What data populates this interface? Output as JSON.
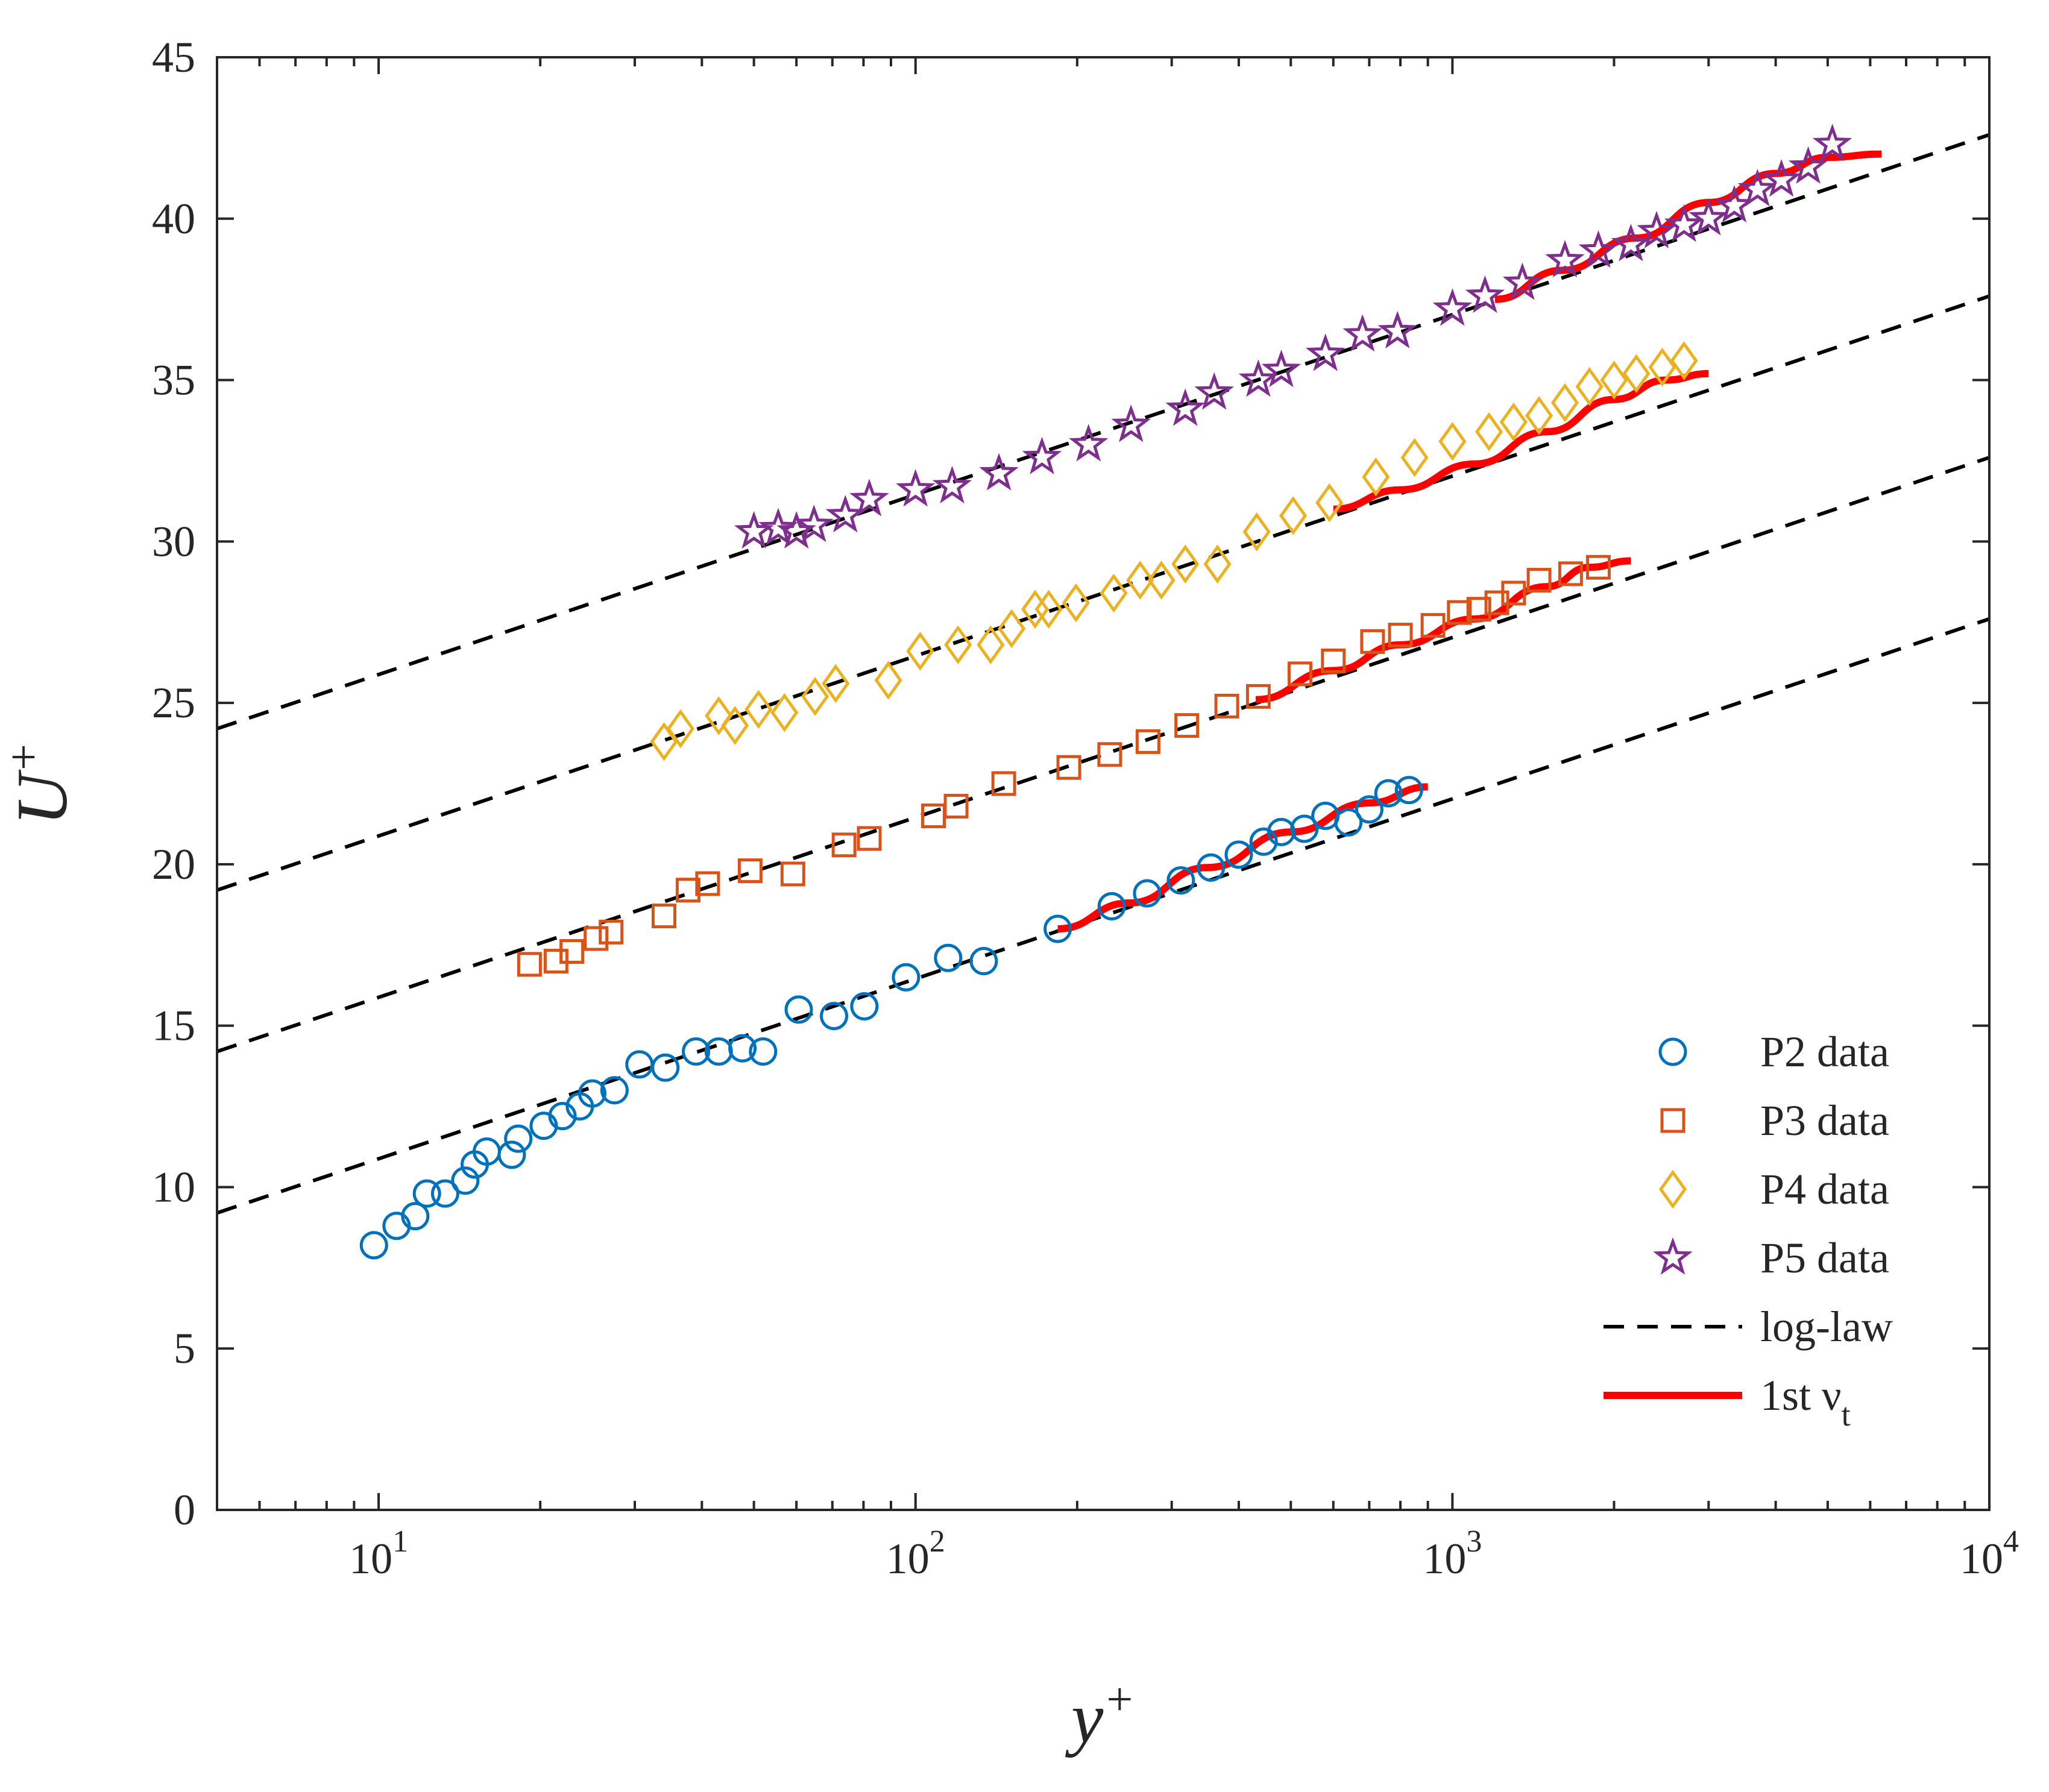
{
  "chart_data": {
    "type": "scatter",
    "xscale": "log",
    "xlim": [
      5,
      10000
    ],
    "ylim": [
      0,
      45
    ],
    "xlabel": {
      "base": "y",
      "sup": "+"
    },
    "ylabel": {
      "base": "U",
      "sup": "+"
    },
    "xticks": [
      {
        "value": 10,
        "base": "10",
        "exp": "1"
      },
      {
        "value": 100,
        "base": "10",
        "exp": "2"
      },
      {
        "value": 1000,
        "base": "10",
        "exp": "3"
      },
      {
        "value": 10000,
        "base": "10",
        "exp": "4"
      }
    ],
    "yticks": [
      0,
      5,
      10,
      15,
      20,
      25,
      30,
      35,
      40,
      45
    ],
    "series": [
      {
        "name": "P2 data",
        "marker": "circle",
        "color": "#0072BD",
        "x": [
          9.8,
          10.8,
          11.7,
          12.3,
          13.3,
          14.5,
          15.1,
          15.9,
          17.7,
          18.2,
          20.3,
          22.0,
          23.7,
          25.0,
          27.5,
          30.6,
          34.2,
          39.0,
          43.0,
          47.6,
          52.0,
          60.6,
          70.5,
          80.3,
          96.0,
          115,
          134,
          184,
          232,
          270,
          312,
          355,
          400,
          445,
          480,
          530,
          580,
          640,
          700,
          760,
          830
        ],
        "y": [
          8.2,
          8.8,
          9.1,
          9.8,
          9.8,
          10.2,
          10.7,
          11.1,
          11.0,
          11.5,
          11.9,
          12.2,
          12.5,
          12.9,
          13.0,
          13.8,
          13.7,
          14.2,
          14.2,
          14.3,
          14.2,
          15.5,
          15.3,
          15.6,
          16.5,
          17.1,
          17.0,
          18.0,
          18.7,
          19.1,
          19.5,
          19.9,
          20.3,
          20.7,
          21.0,
          21.1,
          21.5,
          21.3,
          21.7,
          22.2,
          22.3
        ]
      },
      {
        "name": "P3 data",
        "marker": "square",
        "color": "#D95319",
        "x": [
          19.1,
          21.4,
          22.9,
          25.4,
          27.1,
          34.0,
          37.7,
          41.0,
          49.2,
          59.1,
          73.6,
          82.0,
          108,
          119,
          146,
          193,
          230,
          271,
          320,
          380,
          435,
          520,
          600,
          710,
          800,
          920,
          1030,
          1120,
          1210,
          1300,
          1450,
          1660,
          1870
        ],
        "y": [
          16.9,
          17.0,
          17.3,
          17.7,
          17.9,
          18.4,
          19.2,
          19.4,
          19.8,
          19.7,
          20.6,
          20.8,
          21.5,
          21.8,
          22.5,
          23.0,
          23.4,
          23.8,
          24.3,
          24.9,
          25.2,
          25.9,
          26.3,
          26.9,
          27.1,
          27.4,
          27.8,
          27.9,
          28.1,
          28.4,
          28.8,
          29.0,
          29.2
        ]
      },
      {
        "name": "P4 data",
        "marker": "diamond",
        "color": "#EDB120",
        "x": [
          34.0,
          36.5,
          43.0,
          46.1,
          51.0,
          57.0,
          65.0,
          71.0,
          89.0,
          102,
          120,
          138,
          151,
          167,
          177,
          199,
          234,
          262,
          287,
          318,
          365,
          432,
          505,
          590,
          720,
          850,
          1000,
          1170,
          1300,
          1450,
          1620,
          1800,
          2000,
          2200,
          2460,
          2700
        ],
        "y": [
          23.8,
          24.2,
          24.6,
          24.3,
          24.8,
          24.7,
          25.2,
          25.6,
          25.7,
          26.6,
          26.8,
          26.8,
          27.3,
          27.9,
          27.9,
          28.1,
          28.4,
          28.8,
          28.8,
          29.3,
          29.3,
          30.3,
          30.8,
          31.2,
          32.0,
          32.6,
          33.1,
          33.4,
          33.7,
          33.9,
          34.3,
          34.8,
          35.0,
          35.2,
          35.4,
          35.6
        ]
      },
      {
        "name": "P5 data",
        "marker": "star",
        "color": "#7E2F8E",
        "x": [
          50.0,
          55.5,
          60.0,
          64.7,
          74.0,
          82.0,
          100,
          117,
          143,
          172,
          210,
          252,
          318,
          360,
          435,
          480,
          580,
          680,
          790,
          1000,
          1150,
          1350,
          1620,
          1870,
          2150,
          2400,
          2700,
          3000,
          3350,
          3700,
          4100,
          4600,
          5100
        ],
        "y": [
          30.3,
          30.4,
          30.3,
          30.5,
          30.8,
          31.3,
          31.6,
          31.7,
          32.1,
          32.6,
          33.0,
          33.6,
          34.1,
          34.6,
          35.0,
          35.3,
          35.8,
          36.4,
          36.5,
          37.2,
          37.6,
          38.0,
          38.7,
          39.0,
          39.2,
          39.6,
          39.8,
          40.0,
          40.4,
          40.9,
          41.2,
          41.6,
          42.3
        ]
      }
    ],
    "loglaw": {
      "name": "log-law",
      "style": "dashed",
      "color": "#000000",
      "x_range": [
        5,
        10000
      ],
      "lines": [
        {
          "y_at_x_min": 9.2,
          "y_at_x_max": 27.6
        },
        {
          "y_at_x_min": 14.2,
          "y_at_x_max": 32.6
        },
        {
          "y_at_x_min": 19.2,
          "y_at_x_max": 37.6
        },
        {
          "y_at_x_min": 24.2,
          "y_at_x_max": 42.6
        }
      ]
    },
    "model": {
      "name": "1st ν_t",
      "color": "#FF0000",
      "curves": [
        {
          "x": [
            184,
            250,
            350,
            500,
            700,
            900
          ],
          "y": [
            18.0,
            18.8,
            19.9,
            21.0,
            21.9,
            22.4
          ]
        },
        {
          "x": [
            430,
            600,
            800,
            1100,
            1500,
            1800,
            2150
          ],
          "y": [
            25.1,
            26.0,
            26.8,
            27.6,
            28.6,
            29.2,
            29.4
          ]
        },
        {
          "x": [
            600,
            800,
            1100,
            1500,
            2000,
            2500,
            3000
          ],
          "y": [
            31.0,
            31.6,
            32.4,
            33.4,
            34.4,
            35.0,
            35.2
          ]
        },
        {
          "x": [
            1200,
            1600,
            2200,
            3000,
            4000,
            5000,
            6300
          ],
          "y": [
            37.5,
            38.4,
            39.4,
            40.5,
            41.4,
            41.9,
            42.0
          ]
        }
      ]
    },
    "legend": {
      "position": "bottom-right",
      "entries": [
        {
          "label": "P2 data",
          "kind": "circle",
          "color": "#0072BD"
        },
        {
          "label": "P3 data",
          "kind": "square",
          "color": "#D95319"
        },
        {
          "label": "P4 data",
          "kind": "diamond",
          "color": "#EDB120"
        },
        {
          "label": "P5 data",
          "kind": "star",
          "color": "#7E2F8E"
        },
        {
          "label": "log-law",
          "kind": "dash",
          "color": "#000000"
        },
        {
          "label": "1st ν",
          "sub": "t",
          "kind": "line",
          "color": "#FF0000"
        }
      ]
    }
  }
}
